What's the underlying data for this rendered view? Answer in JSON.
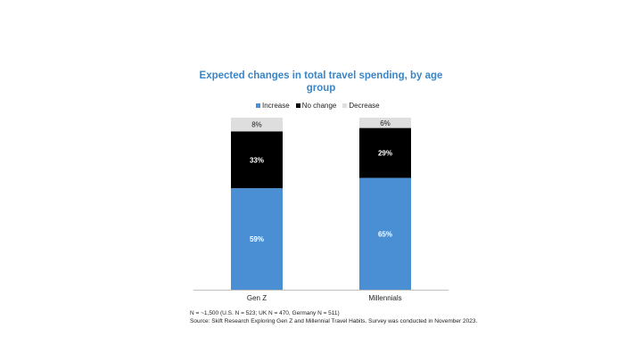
{
  "chart_data": {
    "type": "bar",
    "stacked": true,
    "title": "Expected changes in total travel spending, by age group",
    "categories": [
      "Gen Z",
      "Millennials"
    ],
    "series": [
      {
        "name": "Increase",
        "values": [
          59,
          65
        ],
        "color": "#4a8fd4",
        "label_color": "#ffffff"
      },
      {
        "name": "No change",
        "values": [
          33,
          29
        ],
        "color": "#000000",
        "label_color": "#ffffff"
      },
      {
        "name": "Decrease",
        "values": [
          8,
          6
        ],
        "color": "#dedede",
        "label_color": "#222222"
      }
    ],
    "value_suffix": "%",
    "legend_position": "top-center",
    "grid": false,
    "ylim": [
      0,
      100
    ]
  },
  "footnotes": {
    "line1": "N = ~1,500 (U.S.  N = 523; UK N = 470, Germany N = 511)",
    "line2": "Source: Skift Research Exploring Gen Z and Millennial  Travel Habits. Survey was conducted in November 2023."
  }
}
